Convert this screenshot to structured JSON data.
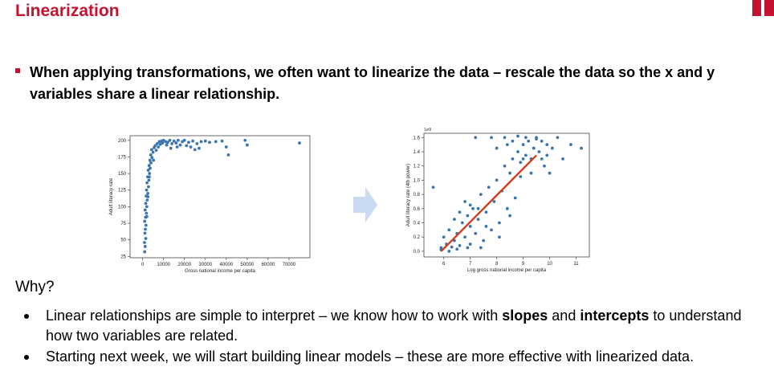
{
  "slide": {
    "title": "Linearization",
    "main_bullet": "When applying transformations, we often want to linearize the data – rescale the data so the x and y variables share a linear relationship.",
    "why_heading": "Why?",
    "points": [
      {
        "parts": [
          {
            "text": "Linear relationships are simple to interpret – we know how to work with ",
            "bold": false
          },
          {
            "text": "slopes",
            "bold": true
          },
          {
            "text": " and ",
            "bold": false
          },
          {
            "text": "intercepts",
            "bold": true
          },
          {
            "text": " to understand how two variables are related.",
            "bold": false
          }
        ]
      },
      {
        "parts": [
          {
            "text": "Starting next week, we will start building linear models – these are more effective with linearized data.",
            "bold": false
          }
        ]
      }
    ],
    "colors": {
      "accent": "#c41230",
      "points": "#3a75b0",
      "fit_line": "#d43d1a",
      "arrow": "#c9daf2"
    }
  },
  "chart_data": [
    {
      "type": "scatter",
      "xlabel": "Gross national income per capita",
      "ylabel": "Adult literacy rate",
      "x_ticks": [
        0,
        10000,
        20000,
        30000,
        40000,
        50000,
        60000,
        70000
      ],
      "y_ticks": [
        25,
        50,
        75,
        100,
        125,
        150,
        175,
        200
      ],
      "xlim": [
        -6000,
        80000
      ],
      "ylim": [
        23,
        207
      ],
      "points": [
        [
          1000,
          32
        ],
        [
          1200,
          40
        ],
        [
          900,
          46
        ],
        [
          1500,
          52
        ],
        [
          1100,
          60
        ],
        [
          1300,
          66
        ],
        [
          1600,
          72
        ],
        [
          1000,
          78
        ],
        [
          1400,
          84
        ],
        [
          1800,
          90
        ],
        [
          1200,
          95
        ],
        [
          2000,
          100
        ],
        [
          1500,
          105
        ],
        [
          2200,
          110
        ],
        [
          1700,
          116
        ],
        [
          2500,
          120
        ],
        [
          1900,
          125
        ],
        [
          2800,
          130
        ],
        [
          2100,
          136
        ],
        [
          3000,
          140
        ],
        [
          2400,
          145
        ],
        [
          3300,
          150
        ],
        [
          2700,
          155
        ],
        [
          3600,
          158
        ],
        [
          3100,
          162
        ],
        [
          4000,
          166
        ],
        [
          3500,
          170
        ],
        [
          4500,
          174
        ],
        [
          3900,
          178
        ],
        [
          5000,
          182
        ],
        [
          4300,
          186
        ],
        [
          5500,
          189
        ],
        [
          6000,
          192
        ],
        [
          7000,
          195
        ],
        [
          8000,
          198
        ],
        [
          9000,
          199
        ],
        [
          10000,
          200
        ],
        [
          11000,
          198
        ],
        [
          12000,
          197
        ],
        [
          13000,
          200
        ],
        [
          14000,
          195
        ],
        [
          15000,
          199
        ],
        [
          16000,
          196
        ],
        [
          17000,
          200
        ],
        [
          18000,
          193
        ],
        [
          19000,
          198
        ],
        [
          20000,
          200
        ],
        [
          21000,
          192
        ],
        [
          22000,
          197
        ],
        [
          23000,
          190
        ],
        [
          24000,
          199
        ],
        [
          25000,
          186
        ],
        [
          26000,
          195
        ],
        [
          27000,
          188
        ],
        [
          28000,
          198
        ],
        [
          30000,
          199
        ],
        [
          32000,
          197
        ],
        [
          35000,
          198
        ],
        [
          38000,
          199
        ],
        [
          2000,
          85
        ],
        [
          2500,
          115
        ],
        [
          3200,
          145
        ],
        [
          5200,
          170
        ],
        [
          6500,
          185
        ],
        [
          7500,
          190
        ],
        [
          8500,
          194
        ],
        [
          9500,
          196
        ],
        [
          11500,
          193
        ],
        [
          13500,
          188
        ],
        [
          16500,
          190
        ],
        [
          40000,
          190
        ],
        [
          41000,
          178
        ],
        [
          49000,
          200
        ],
        [
          50000,
          193
        ],
        [
          75000,
          196
        ]
      ]
    },
    {
      "type": "scatter",
      "xlabel": "Log gross national income per capita",
      "ylabel": "Adult literacy rate (4th power)",
      "y_multiplier": "1e9",
      "x_ticks": [
        6,
        7,
        8,
        9,
        10,
        11
      ],
      "y_ticks": [
        0.0,
        0.2,
        0.4,
        0.6,
        0.8,
        1.0,
        1.2,
        1.4,
        1.6
      ],
      "xlim": [
        5.25,
        11.5
      ],
      "ylim": [
        -0.08,
        1.66
      ],
      "fit_line": [
        [
          5.9,
          0.0
        ],
        [
          9.5,
          1.35
        ]
      ],
      "points": [
        [
          5.9,
          0.05
        ],
        [
          5.9,
          0.02
        ],
        [
          6.0,
          0.2
        ],
        [
          6.1,
          0.1
        ],
        [
          6.2,
          0.3
        ],
        [
          6.3,
          0.06
        ],
        [
          6.4,
          0.15
        ],
        [
          6.5,
          0.03
        ],
        [
          6.5,
          0.25
        ],
        [
          6.6,
          0.08
        ],
        [
          6.7,
          0.4
        ],
        [
          6.8,
          0.2
        ],
        [
          6.9,
          0.5
        ],
        [
          7.0,
          0.1
        ],
        [
          7.0,
          0.35
        ],
        [
          7.1,
          0.6
        ],
        [
          7.2,
          0.25
        ],
        [
          7.3,
          0.45
        ],
        [
          7.4,
          0.8
        ],
        [
          7.5,
          0.15
        ],
        [
          7.6,
          0.55
        ],
        [
          7.7,
          0.9
        ],
        [
          7.8,
          0.3
        ],
        [
          7.9,
          0.7
        ],
        [
          8.0,
          1.0
        ],
        [
          8.1,
          0.4
        ],
        [
          8.2,
          0.85
        ],
        [
          8.3,
          1.2
        ],
        [
          8.4,
          0.6
        ],
        [
          8.5,
          1.1
        ],
        [
          8.6,
          1.3
        ],
        [
          8.7,
          0.75
        ],
        [
          8.8,
          1.4
        ],
        [
          8.9,
          1.25
        ],
        [
          9.0,
          1.5
        ],
        [
          9.1,
          1.35
        ],
        [
          9.2,
          1.55
        ],
        [
          9.3,
          1.3
        ],
        [
          9.4,
          1.45
        ],
        [
          9.5,
          1.6
        ],
        [
          9.6,
          1.4
        ],
        [
          9.7,
          1.55
        ],
        [
          9.8,
          1.2
        ],
        [
          9.9,
          1.5
        ],
        [
          10.0,
          1.1
        ],
        [
          10.1,
          1.45
        ],
        [
          10.3,
          1.6
        ],
        [
          10.5,
          1.3
        ],
        [
          10.8,
          1.5
        ],
        [
          11.2,
          1.45
        ],
        [
          7.2,
          1.6
        ],
        [
          7.8,
          1.6
        ],
        [
          8.3,
          1.6
        ],
        [
          8.6,
          1.55
        ],
        [
          9.1,
          1.6
        ],
        [
          9.5,
          1.58
        ],
        [
          8.0,
          1.45
        ],
        [
          8.4,
          1.5
        ],
        [
          8.8,
          1.62
        ],
        [
          9.0,
          1.3
        ],
        [
          7.0,
          0.65
        ],
        [
          7.6,
          0.35
        ],
        [
          6.6,
          0.55
        ],
        [
          6.9,
          0.05
        ],
        [
          5.6,
          0.9
        ],
        [
          6.2,
          0.0
        ],
        [
          7.4,
          0.05
        ],
        [
          8.1,
          0.2
        ],
        [
          8.5,
          0.5
        ],
        [
          9.3,
          1.1
        ],
        [
          9.9,
          1.35
        ],
        [
          6.4,
          0.45
        ],
        [
          6.8,
          0.7
        ],
        [
          8.9,
          1.05
        ],
        [
          9.7,
          1.3
        ],
        [
          7.3,
          0.6
        ]
      ]
    }
  ]
}
